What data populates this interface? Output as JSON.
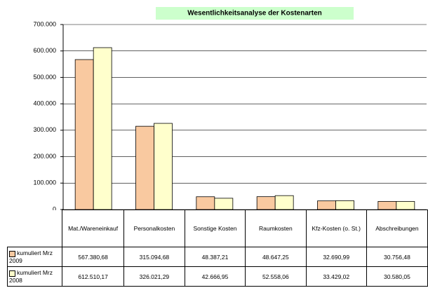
{
  "chart_data": {
    "type": "bar",
    "title": "Wesentlichkeitsanalyse der Kostenarten",
    "categories": [
      "Mat./Wareneinkauf",
      "Personalkosten",
      "Sonstige Kosten",
      "Raumkosten",
      "Kfz-Kosten (o. St.)",
      "Abschreibungen"
    ],
    "series": [
      {
        "name": "kumuliert Mrz 2009",
        "color": "#f9c9a0",
        "values": [
          567380.68,
          315094.68,
          48387.21,
          48647.25,
          32690.99,
          30756.48
        ],
        "value_labels": [
          "567.380,68",
          "315.094,68",
          "48.387,21",
          "48.647,25",
          "32.690,99",
          "30.756,48"
        ]
      },
      {
        "name": "kumuliert Mrz 2008",
        "color": "#ffffcc",
        "values": [
          612510.17,
          326021.29,
          42666.95,
          52558.06,
          33429.02,
          30580.05
        ],
        "value_labels": [
          "612.510,17",
          "326.021,29",
          "42.666,95",
          "52.558,06",
          "33.429,02",
          "30.580,05"
        ]
      }
    ],
    "ylim": [
      0,
      700000
    ],
    "yticks": [
      0,
      {
        "value": 100000,
        "label": "100.000"
      },
      {
        "value": 200000,
        "label": "200.000"
      },
      {
        "value": 300000,
        "label": "300.000"
      },
      {
        "value": 400000,
        "label": "400.000"
      },
      {
        "value": 500000,
        "label": "500.000"
      },
      {
        "value": 600000,
        "label": "600.000"
      },
      {
        "value": 700000,
        "label": "700.000"
      }
    ],
    "grid": true
  }
}
